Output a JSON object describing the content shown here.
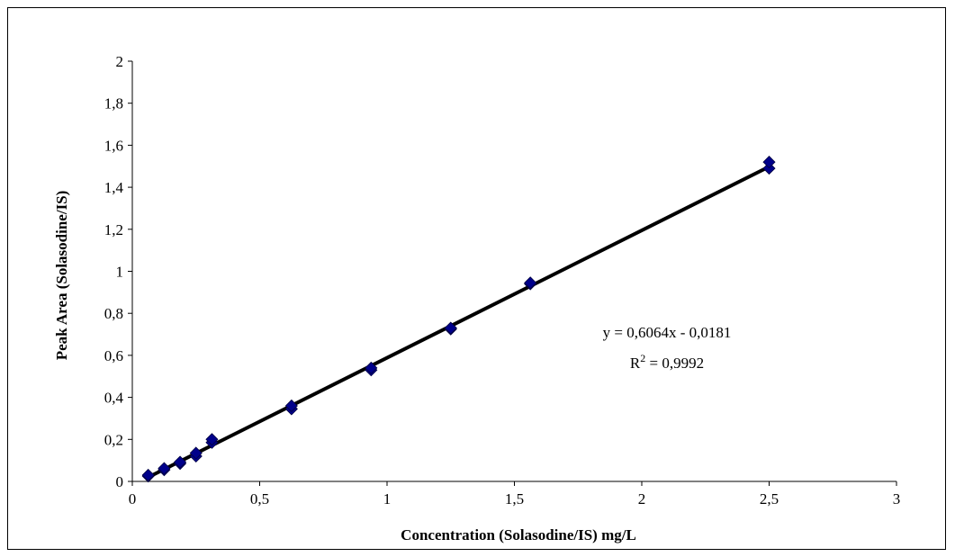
{
  "chart_data": {
    "type": "scatter",
    "title": "",
    "xlabel": "Concentration (Solasodine/IS) mg/L",
    "ylabel": "Peak Area (Solasodine/IS)",
    "xlim": [
      0,
      3
    ],
    "ylim": [
      0,
      2
    ],
    "x_ticks": [
      "0",
      "0,5",
      "1",
      "1,5",
      "2",
      "2,5",
      "3"
    ],
    "y_ticks": [
      "0",
      "0,2",
      "0,4",
      "0,6",
      "0,8",
      "1",
      "1,2",
      "1,4",
      "1,6",
      "1,8",
      "2"
    ],
    "grid": false,
    "marker_color": "#00008B",
    "line_color": "#000000",
    "series": [
      {
        "points": [
          {
            "x": 0.0625,
            "y": 0.025
          },
          {
            "x": 0.0625,
            "y": 0.03
          },
          {
            "x": 0.125,
            "y": 0.055
          },
          {
            "x": 0.125,
            "y": 0.062
          },
          {
            "x": 0.1875,
            "y": 0.085
          },
          {
            "x": 0.1875,
            "y": 0.092
          },
          {
            "x": 0.25,
            "y": 0.12
          },
          {
            "x": 0.25,
            "y": 0.135
          },
          {
            "x": 0.3125,
            "y": 0.185
          },
          {
            "x": 0.3125,
            "y": 0.2
          },
          {
            "x": 0.625,
            "y": 0.345
          },
          {
            "x": 0.625,
            "y": 0.36
          },
          {
            "x": 0.9375,
            "y": 0.53
          },
          {
            "x": 0.9375,
            "y": 0.54
          },
          {
            "x": 1.25,
            "y": 0.725
          },
          {
            "x": 1.25,
            "y": 0.73
          },
          {
            "x": 1.5625,
            "y": 0.94
          },
          {
            "x": 1.5625,
            "y": 0.945
          },
          {
            "x": 2.5,
            "y": 1.49
          },
          {
            "x": 2.5,
            "y": 1.52
          }
        ]
      }
    ],
    "trendline": {
      "slope": 0.6064,
      "intercept": -0.0181,
      "x_range": [
        0.0625,
        2.5
      ]
    },
    "annotation": {
      "equation": "y = 0,6064x - 0,0181",
      "r2_label": "R",
      "r2_superscript": "2",
      "r2_value": " = 0,9992"
    }
  }
}
